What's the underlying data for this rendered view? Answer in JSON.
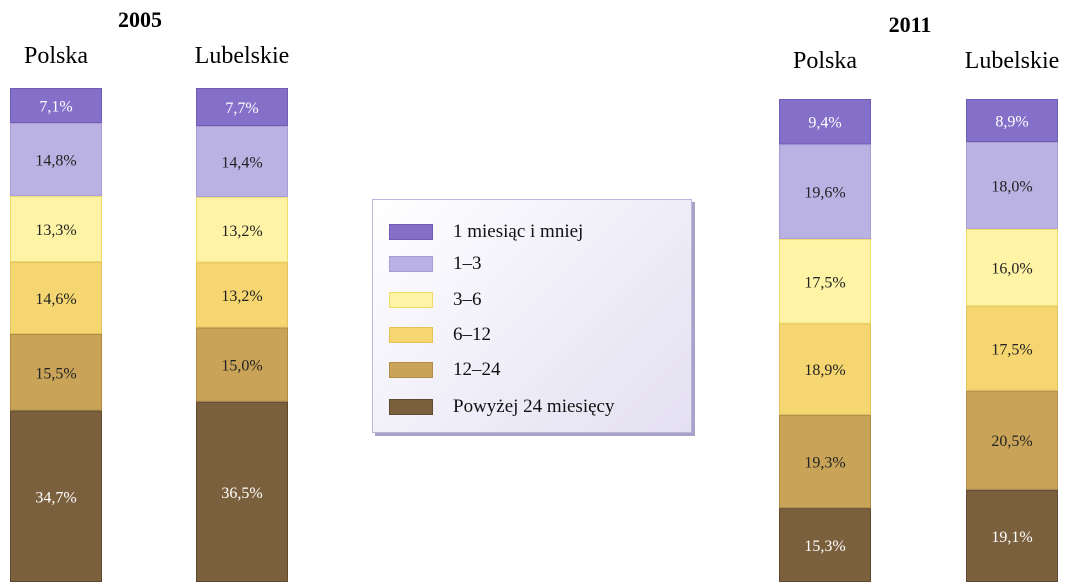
{
  "chart_data": {
    "type": "bar",
    "stacked": true,
    "normalized_percent": true,
    "groups": [
      {
        "title": "2005",
        "categories": [
          "Polska",
          "Lubelskie"
        ],
        "series": [
          {
            "name": "1 miesiąc i mniej",
            "values": [
              7.1,
              7.7
            ],
            "labels": [
              "7,1%",
              "7,7%"
            ]
          },
          {
            "name": "1–3",
            "values": [
              14.8,
              14.4
            ],
            "labels": [
              "14,8%",
              "14,4%"
            ]
          },
          {
            "name": "3–6",
            "values": [
              13.3,
              13.2
            ],
            "labels": [
              "13,3%",
              "13,2%"
            ]
          },
          {
            "name": "6–12",
            "values": [
              14.6,
              13.2
            ],
            "labels": [
              "14,6%",
              "13,2%"
            ]
          },
          {
            "name": "12–24",
            "values": [
              15.5,
              15.0
            ],
            "labels": [
              "15,5%",
              "15,0%"
            ]
          },
          {
            "name": "Powyżej 24 miesięcy",
            "values": [
              34.7,
              36.5
            ],
            "labels": [
              "34,7%",
              "36,5%"
            ]
          }
        ]
      },
      {
        "title": "2011",
        "categories": [
          "Polska",
          "Lubelskie"
        ],
        "series": [
          {
            "name": "1 miesiąc i mniej",
            "values": [
              9.4,
              8.9
            ],
            "labels": [
              "9,4%",
              "8,9%"
            ]
          },
          {
            "name": "1–3",
            "values": [
              19.6,
              18.0
            ],
            "labels": [
              "19,6%",
              "18,0%"
            ]
          },
          {
            "name": "3–6",
            "values": [
              17.5,
              16.0
            ],
            "labels": [
              "17,5%",
              "16,0%"
            ]
          },
          {
            "name": "6–12",
            "values": [
              18.9,
              17.5
            ],
            "labels": [
              "18,9%",
              "17,5%"
            ]
          },
          {
            "name": "12–24",
            "values": [
              19.3,
              20.5
            ],
            "labels": [
              "19,3%",
              "20,5%"
            ]
          },
          {
            "name": "Powyżej 24 miesięcy",
            "values": [
              15.3,
              19.1
            ],
            "labels": [
              "15,3%",
              "19,1%"
            ]
          }
        ]
      }
    ],
    "legend": {
      "placement": "center",
      "items": [
        "1 miesiąc i mniej",
        "1–3",
        "3–6",
        "6–12",
        "12–24",
        "Powyżej 24 miesięcy"
      ]
    },
    "colors": [
      "#8470c8",
      "#bbb2e4",
      "#fff4a6",
      "#f5d670",
      "#c9a458",
      "#7b603e"
    ],
    "border_colors": [
      "#6f5cb5",
      "#a79bd8",
      "#f0dc6a",
      "#e2c25a",
      "#b08c46",
      "#5f4a2f"
    ],
    "label_colors": [
      "#ffffff",
      "#222222",
      "#222222",
      "#222222",
      "#222222",
      "#ffffff"
    ]
  }
}
